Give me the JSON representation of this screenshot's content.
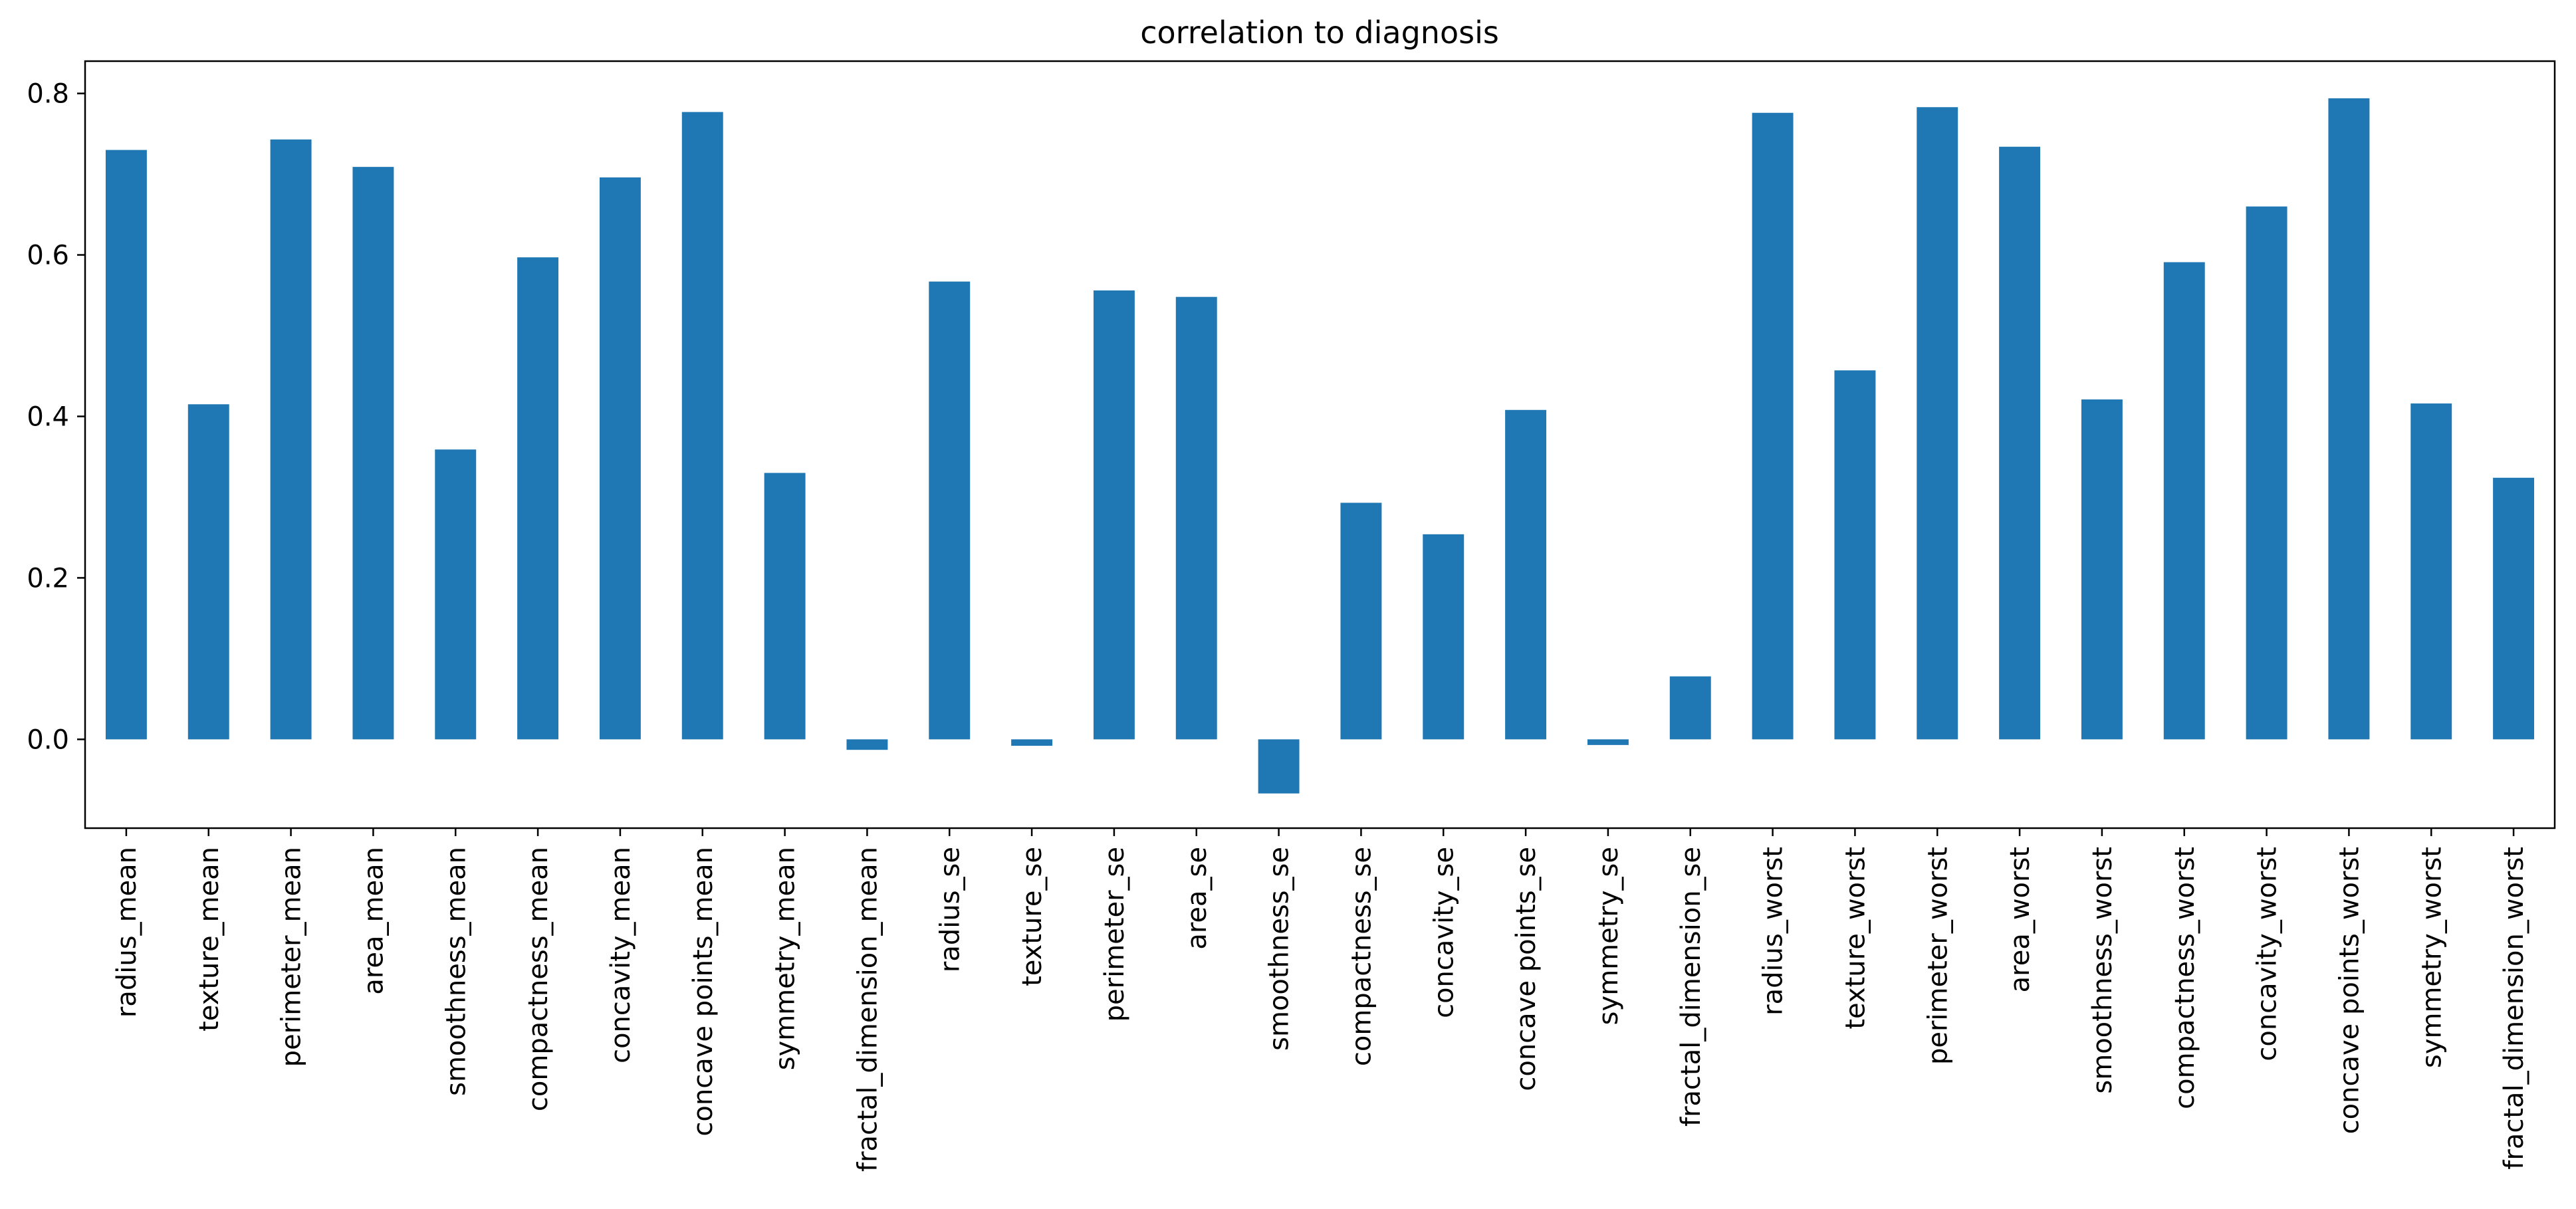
{
  "chart_data": {
    "type": "bar",
    "title": "correlation to diagnosis",
    "xlabel": "",
    "ylabel": "",
    "ylim": [
      -0.11,
      0.84
    ],
    "yticks": [
      0.0,
      0.2,
      0.4,
      0.6,
      0.8
    ],
    "ytick_labels": [
      "0.0",
      "0.2",
      "0.4",
      "0.6",
      "0.8"
    ],
    "grid": false,
    "legend": "none",
    "bar_color": "#1f77b4",
    "categories": [
      "radius_mean",
      "texture_mean",
      "perimeter_mean",
      "area_mean",
      "smoothness_mean",
      "compactness_mean",
      "concavity_mean",
      "concave points_mean",
      "symmetry_mean",
      "fractal_dimension_mean",
      "radius_se",
      "texture_se",
      "perimeter_se",
      "area_se",
      "smoothness_se",
      "compactness_se",
      "concavity_se",
      "concave points_se",
      "symmetry_se",
      "fractal_dimension_se",
      "radius_worst",
      "texture_worst",
      "perimeter_worst",
      "area_worst",
      "smoothness_worst",
      "compactness_worst",
      "concavity_worst",
      "concave points_worst",
      "symmetry_worst",
      "fractal_dimension_worst"
    ],
    "values": [
      0.73,
      0.415,
      0.743,
      0.709,
      0.359,
      0.597,
      0.696,
      0.777,
      0.33,
      -0.013,
      0.567,
      -0.008,
      0.556,
      0.548,
      -0.067,
      0.293,
      0.254,
      0.408,
      -0.007,
      0.078,
      0.776,
      0.457,
      0.783,
      0.734,
      0.421,
      0.591,
      0.66,
      0.794,
      0.416,
      0.324
    ]
  }
}
